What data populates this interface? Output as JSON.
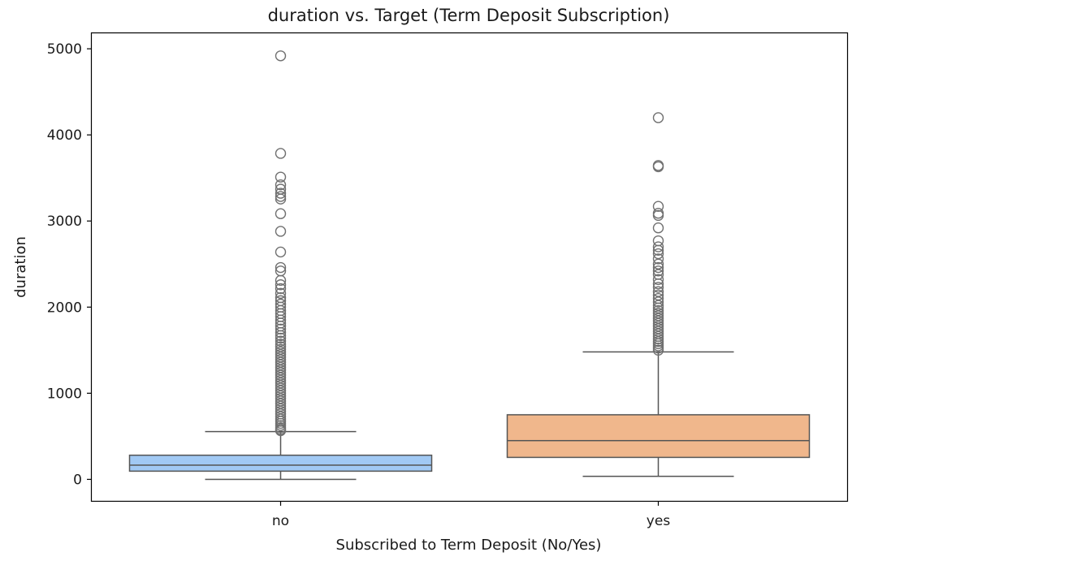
{
  "chart_data": {
    "type": "boxplot",
    "title": "duration vs. Target (Term Deposit Subscription)",
    "xlabel": "Subscribed to Term Deposit (No/Yes)",
    "ylabel": "duration",
    "ylim": [
      -250,
      5180
    ],
    "yticks": [
      0,
      1000,
      2000,
      3000,
      4000,
      5000
    ],
    "ytick_labels": [
      "0",
      "1000",
      "2000",
      "3000",
      "4000",
      "5000"
    ],
    "categories": [
      "no",
      "yes"
    ],
    "colors": {
      "no": "#a1c9f4",
      "yes": "#f0b78c",
      "lines": "#555555"
    },
    "grid": false,
    "boxes": [
      {
        "category": "no",
        "whisker_low": 0,
        "q1": 95,
        "median": 165,
        "q3": 280,
        "whisker_high": 555,
        "outliers": [
          4918,
          3785,
          3510,
          3420,
          3370,
          3322,
          3285,
          3255,
          3085,
          2880,
          2640,
          2460,
          2420,
          2310,
          2260,
          2215,
          2160,
          2110,
          2075,
          2035,
          2000,
          1960,
          1925,
          1890,
          1850,
          1815,
          1780,
          1745,
          1705,
          1670,
          1640,
          1605,
          1570,
          1540,
          1510,
          1480,
          1450,
          1420,
          1390,
          1360,
          1330,
          1300,
          1270,
          1240,
          1210,
          1180,
          1150,
          1120,
          1090,
          1060,
          1030,
          1000,
          970,
          940,
          910,
          880,
          850,
          820,
          790,
          760,
          730,
          700,
          675,
          650,
          625,
          600,
          580,
          565
        ]
      },
      {
        "category": "yes",
        "whisker_low": 35,
        "q1": 255,
        "median": 450,
        "q3": 750,
        "whisker_high": 1480,
        "outliers": [
          4200,
          3645,
          3630,
          3170,
          3090,
          3065,
          2920,
          2770,
          2700,
          2660,
          2620,
          2560,
          2500,
          2460,
          2420,
          2380,
          2320,
          2270,
          2230,
          2180,
          2140,
          2100,
          2060,
          2020,
          1990,
          1960,
          1930,
          1900,
          1870,
          1840,
          1810,
          1780,
          1750,
          1720,
          1690,
          1660,
          1630,
          1600,
          1575,
          1550,
          1525,
          1500
        ]
      }
    ]
  }
}
